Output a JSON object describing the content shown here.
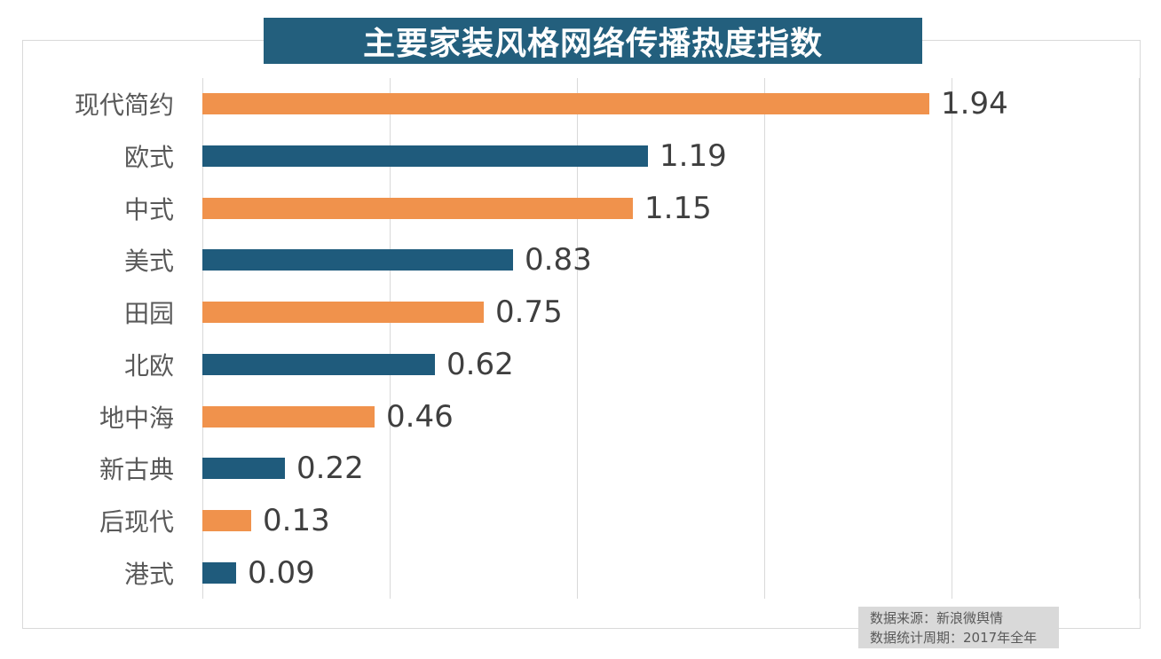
{
  "chart": {
    "title": "主要家装风格网络传播热度指数"
  },
  "chart_data": {
    "type": "bar",
    "orientation": "horizontal",
    "title": "主要家装风格网络传播热度指数",
    "categories": [
      "现代简约",
      "欧式",
      "中式",
      "美式",
      "田园",
      "北欧",
      "地中海",
      "新古典",
      "后现代",
      "港式"
    ],
    "values": [
      1.94,
      1.19,
      1.15,
      0.83,
      0.75,
      0.62,
      0.46,
      0.22,
      0.13,
      0.09
    ],
    "value_labels": [
      "1.94",
      "1.19",
      "1.15",
      "0.83",
      "0.75",
      "0.62",
      "0.46",
      "0.22",
      "0.13",
      "0.09"
    ],
    "xlim": [
      0,
      2.5
    ],
    "gridline_step": 0.5,
    "grid": true,
    "legend": false,
    "bar_color_pattern": "alternating",
    "bar_color_odd_rows": "#F0924C",
    "bar_color_even_rows": "#1F5B7C"
  },
  "footer": {
    "line1": "数据来源：新浪微舆情",
    "line2": "数据统计周期：2017年全年"
  },
  "colors": {
    "banner_bg": "#235F7D",
    "banner_text": "#FFFFFF",
    "orange": "#F0924C",
    "blue": "#1F5B7C",
    "gridline": "#D9D9D9",
    "border": "#D9D9D9",
    "category_label": "#595959",
    "value_label": "#3F3F3F",
    "footer_bg": "#D9D9D9",
    "footer_text": "#595959"
  }
}
